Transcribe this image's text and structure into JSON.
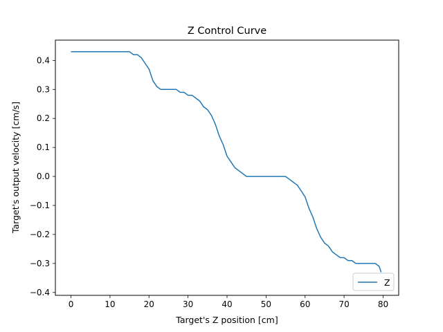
{
  "chart_data": {
    "type": "line",
    "title": "Z Control Curve",
    "xlabel": "Target's Z position [cm]",
    "ylabel": "Target's output velocity [cm/s]",
    "xlim": [
      -4,
      84
    ],
    "ylim": [
      -0.41,
      0.47
    ],
    "xticks": [
      0,
      10,
      20,
      30,
      40,
      50,
      60,
      70,
      80
    ],
    "yticks": [
      -0.4,
      -0.3,
      -0.2,
      -0.1,
      0.0,
      0.1,
      0.2,
      0.3,
      0.4
    ],
    "xtick_labels": [
      "0",
      "10",
      "20",
      "30",
      "40",
      "50",
      "60",
      "70",
      "80"
    ],
    "ytick_labels": [
      "−0.4",
      "−0.3",
      "−0.2",
      "−0.1",
      "0.0",
      "0.1",
      "0.2",
      "0.3",
      "0.4"
    ],
    "grid": false,
    "legend_position": "lower-right",
    "series": [
      {
        "name": "Z",
        "color": "#1f77b4",
        "x": [
          0,
          1,
          2,
          3,
          4,
          5,
          6,
          7,
          8,
          9,
          10,
          11,
          12,
          13,
          14,
          15,
          16,
          17,
          18,
          19,
          20,
          21,
          22,
          23,
          24,
          25,
          26,
          27,
          28,
          29,
          30,
          31,
          32,
          33,
          34,
          35,
          36,
          37,
          38,
          39,
          40,
          41,
          42,
          43,
          44,
          45,
          46,
          47,
          48,
          49,
          50,
          51,
          52,
          53,
          54,
          55,
          56,
          57,
          58,
          59,
          60,
          61,
          62,
          63,
          64,
          65,
          66,
          67,
          68,
          69,
          70,
          71,
          72,
          73,
          74,
          75,
          76,
          77,
          78,
          79,
          79.5
        ],
        "y": [
          0.43,
          0.43,
          0.43,
          0.43,
          0.43,
          0.43,
          0.43,
          0.43,
          0.43,
          0.43,
          0.43,
          0.43,
          0.43,
          0.43,
          0.43,
          0.43,
          0.42,
          0.42,
          0.41,
          0.39,
          0.37,
          0.33,
          0.31,
          0.3,
          0.3,
          0.3,
          0.3,
          0.3,
          0.29,
          0.29,
          0.28,
          0.28,
          0.27,
          0.26,
          0.24,
          0.23,
          0.21,
          0.18,
          0.14,
          0.11,
          0.07,
          0.05,
          0.03,
          0.02,
          0.01,
          0.0,
          0.0,
          0.0,
          0.0,
          0.0,
          0.0,
          0.0,
          0.0,
          0.0,
          0.0,
          0.0,
          -0.01,
          -0.02,
          -0.03,
          -0.05,
          -0.07,
          -0.11,
          -0.14,
          -0.18,
          -0.21,
          -0.23,
          -0.24,
          -0.26,
          -0.27,
          -0.28,
          -0.28,
          -0.29,
          -0.29,
          -0.3,
          -0.3,
          -0.3,
          -0.3,
          -0.3,
          -0.3,
          -0.31,
          -0.33
        ]
      }
    ]
  }
}
